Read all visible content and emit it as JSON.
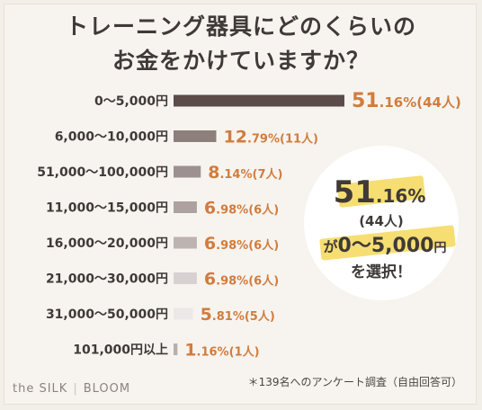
{
  "header": {
    "title_line1": "トレーニング器具にどのくらいの",
    "title_line2": "お金をかけていますか？"
  },
  "chart_data": {
    "type": "bar",
    "orientation": "horizontal",
    "unit": "%",
    "categories": [
      "0～5,000円",
      "6,000～10,000円",
      "51,000～100,000円",
      "11,000～15,000円",
      "16,000～20,000円",
      "21,000～30,000円",
      "31,000～50,000円",
      "101,000円以上"
    ],
    "values": [
      51.16,
      12.79,
      8.14,
      6.98,
      6.98,
      6.98,
      5.81,
      1.16
    ],
    "counts": [
      "(44人)",
      "(11人)",
      "(7人)",
      "(6人)",
      "(6人)",
      "(6人)",
      "(5人)",
      "(1人)"
    ],
    "bar_colors": [
      "#5b4c4a",
      "#8c7f7c",
      "#9c9090",
      "#aea2a1",
      "#bdb3b1",
      "#d7d1d1",
      "#ece8e8",
      "#b6afad"
    ],
    "label_color": "#d17c3e",
    "grid": false
  },
  "callout": {
    "percent_int": "51",
    "percent_dec": ".16%",
    "count": "(44人)",
    "line_prefix": "が",
    "range": "0～5,000",
    "range_unit": "円",
    "line3": "を選択！",
    "highlight_color": "#f4d85a"
  },
  "footnote": "＊139名へのアンケート調査（自由回答可）",
  "brand": {
    "left": "the SILK",
    "right": "BLOOM"
  }
}
